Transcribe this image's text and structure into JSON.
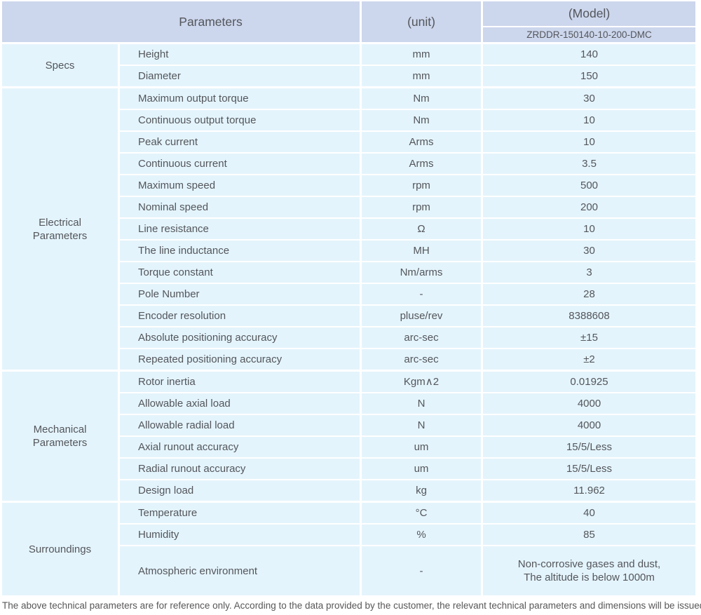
{
  "header": {
    "parameters_label": "Parameters",
    "unit_label": "(unit)",
    "model_label": "(Model)",
    "model_value": "ZRDDR-150140-10-200-DMC"
  },
  "groups": [
    {
      "label": "Specs",
      "rows": [
        {
          "name": "Height",
          "unit": "mm",
          "value": "140"
        },
        {
          "name": "Diameter",
          "unit": "mm",
          "value": "150"
        }
      ]
    },
    {
      "label": "Electrical\nParameters",
      "rows": [
        {
          "name": "Maximum output torque",
          "unit": "Nm",
          "value": "30"
        },
        {
          "name": "Continuous output torque",
          "unit": "Nm",
          "value": "10"
        },
        {
          "name": "Peak current",
          "unit": "Arms",
          "value": "10"
        },
        {
          "name": "Continuous current",
          "unit": "Arms",
          "value": "3.5"
        },
        {
          "name": "Maximum speed",
          "unit": "rpm",
          "value": "500"
        },
        {
          "name": "Nominal speed",
          "unit": "rpm",
          "value": "200"
        },
        {
          "name": "Line resistance",
          "unit": "Ω",
          "value": "10"
        },
        {
          "name": "The line inductance",
          "unit": "MH",
          "value": "30"
        },
        {
          "name": "Torque constant",
          "unit": "Nm/arms",
          "value": "3"
        },
        {
          "name": "Pole Number",
          "unit": "-",
          "value": "28"
        },
        {
          "name": "Encoder resolution",
          "unit": "pluse/rev",
          "value": "8388608"
        },
        {
          "name": "Absolute positioning accuracy",
          "unit": "arc-sec",
          "value": "±15"
        },
        {
          "name": "Repeated positioning accuracy",
          "unit": "arc-sec",
          "value": "±2"
        }
      ]
    },
    {
      "label": "Mechanical\nParameters",
      "rows": [
        {
          "name": "Rotor inertia",
          "unit": "Kgm∧2",
          "value": "0.01925"
        },
        {
          "name": "Allowable axial load",
          "unit": "N",
          "value": "4000"
        },
        {
          "name": "Allowable radial load",
          "unit": "N",
          "value": "4000"
        },
        {
          "name": "Axial runout accuracy",
          "unit": "um",
          "value": "15/5/Less"
        },
        {
          "name": "Radial runout accuracy",
          "unit": "um",
          "value": "15/5/Less"
        },
        {
          "name": "Design load",
          "unit": "kg",
          "value": "11.962"
        }
      ]
    },
    {
      "label": "Surroundings",
      "rows": [
        {
          "name": "Temperature",
          "unit": "°C",
          "value": "40"
        },
        {
          "name": "Humidity",
          "unit": "%",
          "value": "85"
        },
        {
          "name": "Atmospheric environment",
          "unit": "-",
          "value": "Non-corrosive gases and dust,\nThe altitude is below 1000m",
          "tall": true
        }
      ]
    }
  ],
  "footer": {
    "note": "The above technical parameters are for reference only. According to the data provided by the customer, the relevant technical parameters and dimensions will be issued."
  },
  "colors": {
    "header_bg": "#ccd6ec",
    "body_bg": "#e4f4fc",
    "text": "#53565b",
    "border": "#ffffff"
  }
}
